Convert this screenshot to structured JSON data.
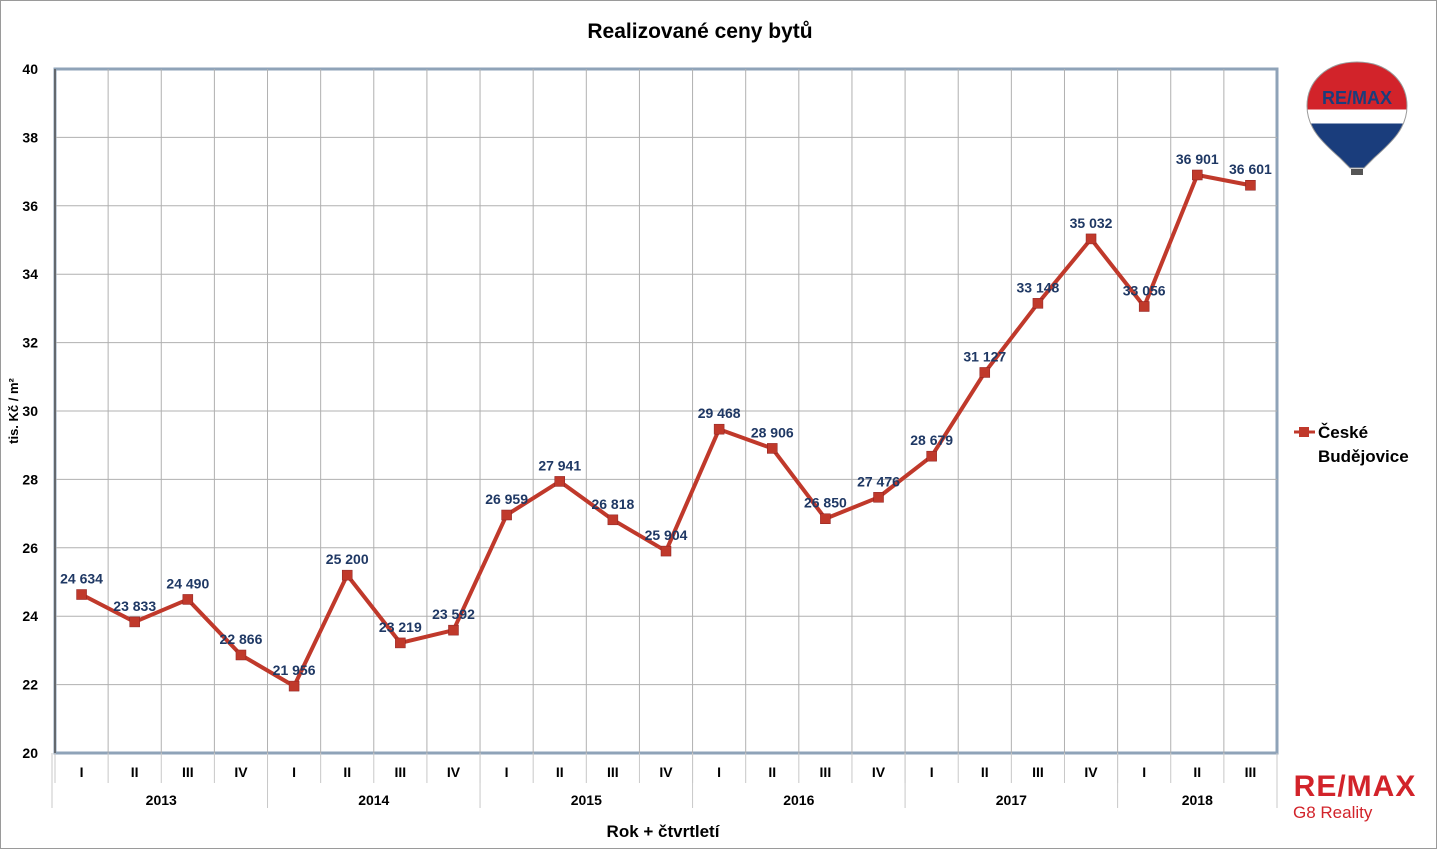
{
  "chart_data": {
    "type": "line",
    "title": "Realizované ceny bytů",
    "xlabel": "Rok + čtvrtletí",
    "ylabel": "tis. Kč / m²",
    "ylim": [
      20,
      40
    ],
    "yticks": [
      "20",
      "22",
      "24",
      "26",
      "28",
      "30",
      "32",
      "34",
      "36",
      "38",
      "40"
    ],
    "grid": true,
    "legend_position": "right",
    "line_color": "#c0392b",
    "label_color": "#1f3864",
    "quarters": [
      "I",
      "II",
      "III",
      "IV",
      "I",
      "II",
      "III",
      "IV",
      "I",
      "II",
      "III",
      "IV",
      "I",
      "II",
      "III",
      "IV",
      "I",
      "II",
      "III",
      "IV",
      "I",
      "II",
      "III"
    ],
    "years": [
      {
        "label": "2013",
        "quarters": 4
      },
      {
        "label": "2014",
        "quarters": 4
      },
      {
        "label": "2015",
        "quarters": 4
      },
      {
        "label": "2016",
        "quarters": 4
      },
      {
        "label": "2017",
        "quarters": 4
      },
      {
        "label": "2018",
        "quarters": 3
      }
    ],
    "series": [
      {
        "name": "České Budějovice",
        "name_lines": [
          "České",
          "Budějovice"
        ],
        "values": [
          24.634,
          23.833,
          24.49,
          22.866,
          21.956,
          25.2,
          23.219,
          23.592,
          26.959,
          27.941,
          26.818,
          25.904,
          29.468,
          28.906,
          26.85,
          27.476,
          28.679,
          31.127,
          33.148,
          35.032,
          33.056,
          36.901,
          36.601
        ],
        "labels": [
          "24 634",
          "23 833",
          "24 490",
          "22 866",
          "21 956",
          "25 200",
          "23 219",
          "23 592",
          "26 959",
          "27 941",
          "26 818",
          "25 904",
          "29 468",
          "28 906",
          "26 850",
          "27 476",
          "28 679",
          "31 127",
          "33 148",
          "35 032",
          "33 056",
          "36 901",
          "36 601"
        ]
      }
    ]
  },
  "branding": {
    "balloon_text": "RE/MAX",
    "logo_text": "RE/MAX",
    "logo_subtext": "G8 Reality",
    "brand_red": "#d2232a",
    "brand_blue": "#1a3d7c"
  }
}
